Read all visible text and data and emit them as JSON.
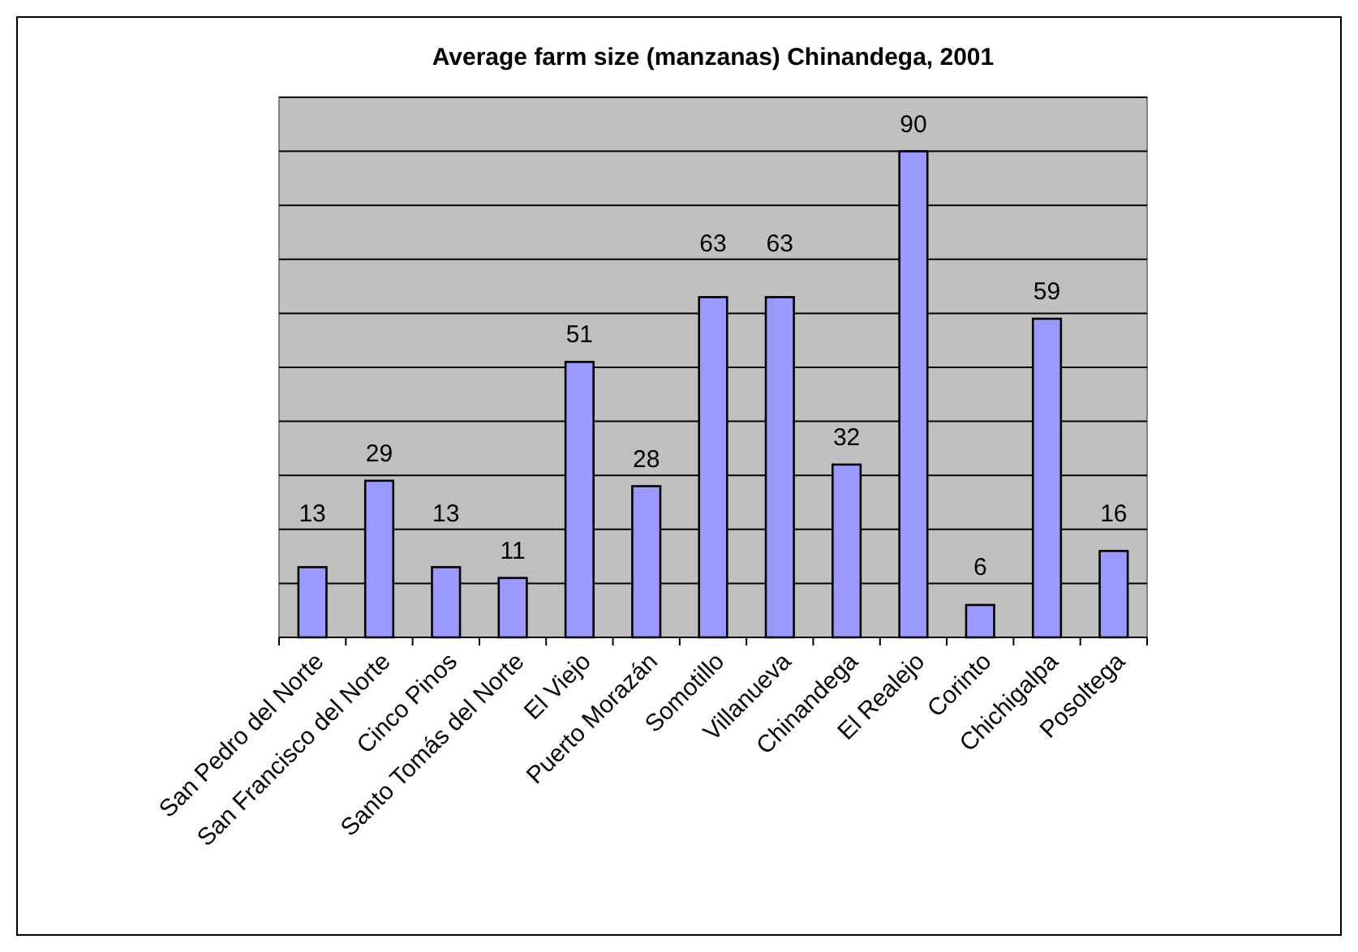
{
  "chart_data": {
    "type": "bar",
    "title": "Average farm size (manzanas) Chinandega, 2001",
    "categories": [
      "San Pedro del Norte",
      "San Francisco del Norte",
      "Cinco Pinos",
      "Santo Tomás del Norte",
      "El Viejo",
      "Puerto Morazán",
      "Somotillo",
      "Villanueva",
      "Chinandega",
      "El Realejo",
      "Corinto",
      "Chichigalpa",
      "Posoltega"
    ],
    "values": [
      13,
      29,
      13,
      11,
      51,
      28,
      63,
      63,
      32,
      90,
      6,
      59,
      16
    ],
    "color": "#9999ff",
    "ylim": [
      0,
      100
    ],
    "yticks": [
      {
        "value": 0,
        "label": null
      },
      {
        "value": 10,
        "label": null
      },
      {
        "value": 20,
        "label": null
      },
      {
        "value": 30,
        "label": null
      },
      {
        "value": 40,
        "label": null
      },
      {
        "value": 50,
        "label": null
      },
      {
        "value": 60,
        "label": null
      },
      {
        "value": 70,
        "label": null
      },
      {
        "value": 80,
        "label": null
      },
      {
        "value": 90,
        "label": null
      },
      {
        "value": 100,
        "label": null
      }
    ],
    "tick_labels": "x",
    "grid": "y",
    "data_labels": true
  }
}
